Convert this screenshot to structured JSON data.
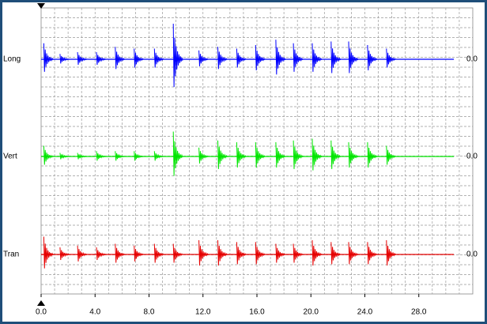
{
  "chart_data": {
    "type": "waveform",
    "x": [
      0.2,
      1.4,
      2.7,
      4.1,
      5.5,
      6.9,
      8.4,
      9.8,
      11.7,
      13.1,
      14.5,
      15.9,
      17.4,
      18.7,
      20.1,
      21.5,
      22.8,
      24.2,
      25.6
    ],
    "xlim": [
      0,
      32
    ],
    "xticks": [
      {
        "value": 0,
        "label": "0.0"
      },
      {
        "value": 4,
        "label": "4.0"
      },
      {
        "value": 8,
        "label": "8.0"
      },
      {
        "value": 12,
        "label": "12.0"
      },
      {
        "value": 16,
        "label": "16.0"
      },
      {
        "value": 20,
        "label": "20.0"
      },
      {
        "value": 24,
        "label": "24.0"
      },
      {
        "value": 28,
        "label": "28.0"
      }
    ],
    "ylim": [
      -1,
      1
    ],
    "grid": true,
    "series": [
      {
        "name": "Long",
        "color": "#0000ff",
        "baseline": {
          "value": 0,
          "label": "0.0"
        },
        "values": [
          0.45,
          0.15,
          0.2,
          0.2,
          0.35,
          0.3,
          0.3,
          1.0,
          0.25,
          0.35,
          0.3,
          0.4,
          0.55,
          0.45,
          0.45,
          0.5,
          0.5,
          0.4,
          0.3
        ]
      },
      {
        "name": "Vert",
        "color": "#00e600",
        "baseline": {
          "value": 0,
          "label": "0.0"
        },
        "values": [
          0.3,
          0.1,
          0.1,
          0.15,
          0.15,
          0.15,
          0.15,
          0.7,
          0.25,
          0.45,
          0.4,
          0.4,
          0.4,
          0.45,
          0.5,
          0.45,
          0.4,
          0.4,
          0.3
        ]
      },
      {
        "name": "Tran",
        "color": "#e60000",
        "baseline": {
          "value": 0,
          "label": "0.0"
        },
        "values": [
          0.5,
          0.2,
          0.25,
          0.2,
          0.3,
          0.25,
          0.3,
          0.3,
          0.4,
          0.4,
          0.35,
          0.35,
          0.3,
          0.3,
          0.4,
          0.35,
          0.35,
          0.35,
          0.4
        ]
      }
    ]
  }
}
